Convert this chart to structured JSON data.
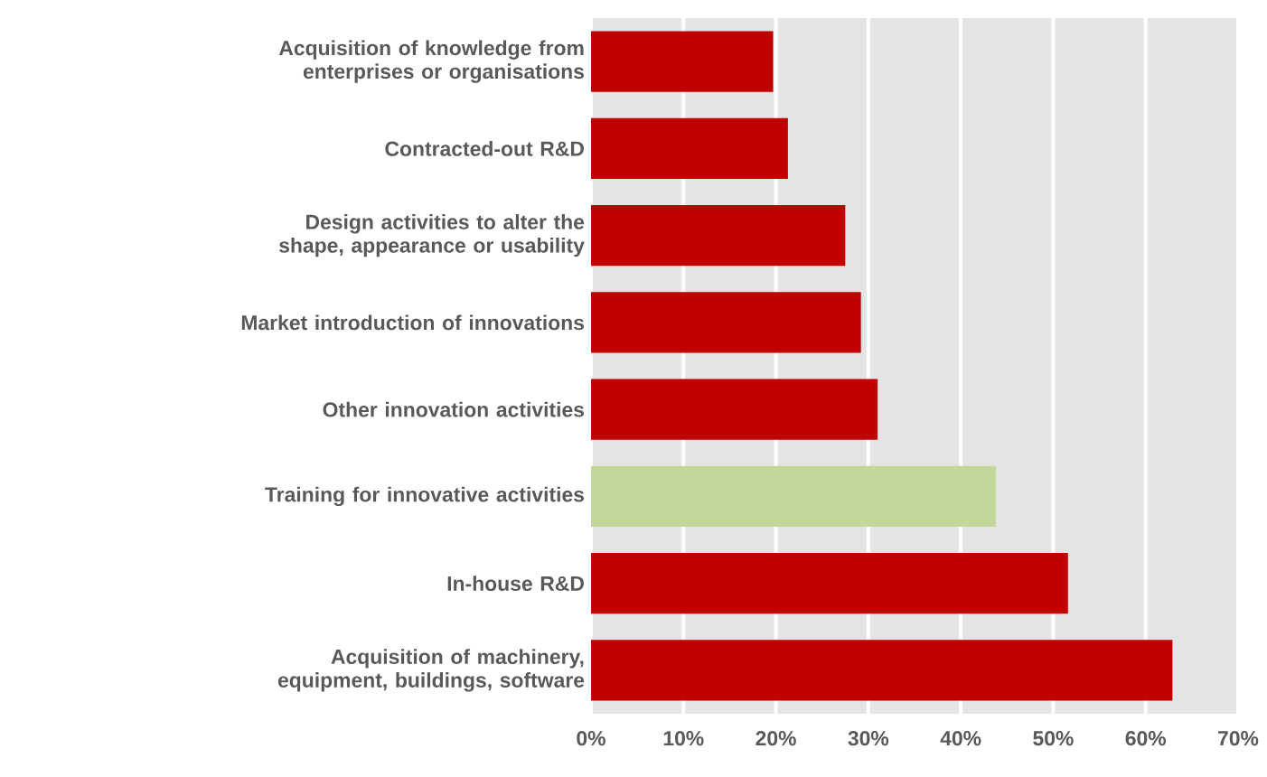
{
  "chart_data": {
    "type": "bar",
    "orientation": "horizontal",
    "categories": [
      "Acquisition of knowledge from enterprises or organisations",
      "Contracted-out R&D",
      "Design activities to alter the shape, appearance or usability",
      "Market introduction of innovations",
      "Other innovation activities",
      "Training for innovative activities",
      "In-house R&D",
      "Acquisition of machinery, equipment, buildings, software"
    ],
    "values": [
      19.7,
      21.3,
      27.5,
      29.2,
      31.0,
      43.8,
      51.6,
      62.9
    ],
    "colors": [
      "#c00000",
      "#c00000",
      "#c00000",
      "#c00000",
      "#c00000",
      "#c4d79b",
      "#c00000",
      "#c00000"
    ],
    "xlim": [
      0,
      70
    ],
    "xticks": [
      {
        "value": 0,
        "label": "0%"
      },
      {
        "value": 10,
        "label": "10%"
      },
      {
        "value": 20,
        "label": "20%"
      },
      {
        "value": 30,
        "label": "30%"
      },
      {
        "value": 40,
        "label": "40%"
      },
      {
        "value": 50,
        "label": "50%"
      },
      {
        "value": 60,
        "label": "60%"
      },
      {
        "value": 70,
        "label": "70%"
      }
    ],
    "grid": "x"
  }
}
